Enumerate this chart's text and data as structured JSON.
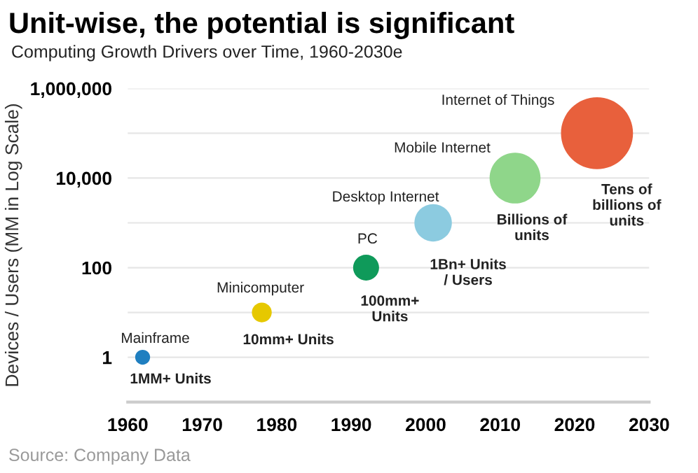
{
  "chart_data": {
    "type": "bubble",
    "title": "Unit-wise, the potential is significant",
    "subtitle": "Computing Growth Drivers over Time, 1960-2030e",
    "ylabel": "Devices / Users (MM in Log Scale)",
    "x": [
      1962,
      1978,
      1992,
      2001,
      2012,
      2023
    ],
    "values": [
      1,
      10,
      100,
      1000,
      10000,
      100000
    ],
    "sizes": [
      0.043,
      0.076,
      0.13,
      0.27,
      0.5,
      1
    ],
    "colors": [
      "#1f7fc0",
      "#e6c800",
      "#0f9a5a",
      "#8ccbe0",
      "#8fd68a",
      "#e8603c"
    ],
    "log": "y",
    "grid": "y",
    "xlim": [
      1960,
      2030
    ],
    "xticks": [
      1960,
      1970,
      1980,
      1990,
      2000,
      2010,
      2020,
      2030
    ],
    "ylim": [
      0.1,
      1000000
    ],
    "yticks": [
      {
        "value": 1,
        "label": "1"
      },
      {
        "value": 10,
        "label": null
      },
      {
        "value": 100,
        "label": "100"
      },
      {
        "value": 1000,
        "label": null
      },
      {
        "value": 10000,
        "label": "10,000"
      },
      {
        "value": 100000,
        "label": null
      },
      {
        "value": 1000000,
        "label": "1,000,000"
      }
    ],
    "annotations": [
      {
        "text": "Mainframe",
        "x": 1962,
        "y": 1
      },
      {
        "text": "1MM+ Units",
        "x": 1962,
        "y": 1
      },
      {
        "text": "Minicomputer",
        "x": 1978,
        "y": 10
      },
      {
        "text": "10mm+ Units",
        "x": 1978,
        "y": 10
      },
      {
        "text": "PC",
        "x": 1992,
        "y": 100
      },
      {
        "text": "100mm+\nUnits",
        "x": 1992,
        "y": 100
      },
      {
        "text": "Desktop Internet",
        "x": 2001,
        "y": 1000
      },
      {
        "text": "1Bn+ Units\n/ Users",
        "x": 2001,
        "y": 1000
      },
      {
        "text": "Mobile Internet",
        "x": 2012,
        "y": 10000
      },
      {
        "text": "Billions of\nunits",
        "x": 2012,
        "y": 10000
      },
      "Internet of Things",
      "Tens of\nbillions of\nunits",
      "Source: Company Data"
    ]
  }
}
